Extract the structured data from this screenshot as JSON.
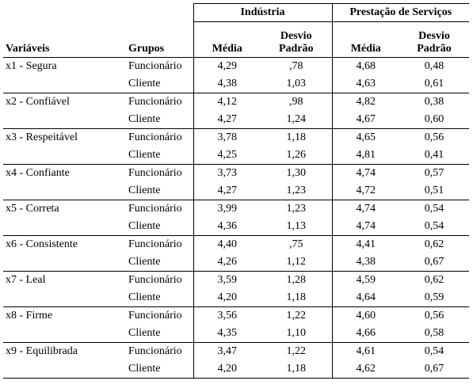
{
  "table": {
    "group_headers": [
      "Indústria",
      "Prestação de Serviços"
    ],
    "columns": [
      "Variáveis",
      "Grupos",
      "Média",
      "Desvio Padrão",
      "Média",
      "Desvio Padrão"
    ],
    "rows": [
      {
        "variable": "x1 - Segura",
        "groups": [
          [
            "Funcionário",
            "4,29",
            ",78",
            "4,68",
            "0,48"
          ],
          [
            "Cliente",
            "4,38",
            "1,03",
            "4,63",
            "0,61"
          ]
        ]
      },
      {
        "variable": "x2 - Confiável",
        "groups": [
          [
            "Funcionário",
            "4,12",
            ",98",
            "4,82",
            "0,38"
          ],
          [
            "Cliente",
            "4,27",
            "1,24",
            "4,67",
            "0,60"
          ]
        ]
      },
      {
        "variable": "x3 - Respeitável",
        "groups": [
          [
            "Funcionário",
            "3,78",
            "1,18",
            "4,65",
            "0,56"
          ],
          [
            "Cliente",
            "4,25",
            "1,26",
            "4,81",
            "0,41"
          ]
        ]
      },
      {
        "variable": "x4 - Confiante",
        "groups": [
          [
            "Funcionário",
            "3,73",
            "1,30",
            "4,74",
            "0,57"
          ],
          [
            "Cliente",
            "4,27",
            "1,23",
            "4,72",
            "0,51"
          ]
        ]
      },
      {
        "variable": "x5 - Correta",
        "groups": [
          [
            "Funcionário",
            "3,99",
            "1,23",
            "4,74",
            "0,54"
          ],
          [
            "Cliente",
            "4,36",
            "1,13",
            "4,74",
            "0,54"
          ]
        ]
      },
      {
        "variable": "x6 - Consistente",
        "groups": [
          [
            "Funcionário",
            "4,40",
            ",75",
            "4,41",
            "0,62"
          ],
          [
            "Cliente",
            "4,26",
            "1,12",
            "4,38",
            "0,67"
          ]
        ]
      },
      {
        "variable": "x7 - Leal",
        "groups": [
          [
            "Funcionário",
            "3,59",
            "1,28",
            "4,59",
            "0,62"
          ],
          [
            "Cliente",
            "4,20",
            "1,18",
            "4,64",
            "0,59"
          ]
        ]
      },
      {
        "variable": "x8 - Firme",
        "groups": [
          [
            "Funcionário",
            "3,56",
            "1,22",
            "4,60",
            "0,56"
          ],
          [
            "Cliente",
            "4,35",
            "1,10",
            "4,66",
            "0,58"
          ]
        ]
      },
      {
        "variable": "x9 - Equilibrada",
        "groups": [
          [
            "Funcionário",
            "3,47",
            "1,22",
            "4,61",
            "0,54"
          ],
          [
            "Cliente",
            "4,20",
            "1,18",
            "4,62",
            "0,67"
          ]
        ]
      }
    ]
  }
}
